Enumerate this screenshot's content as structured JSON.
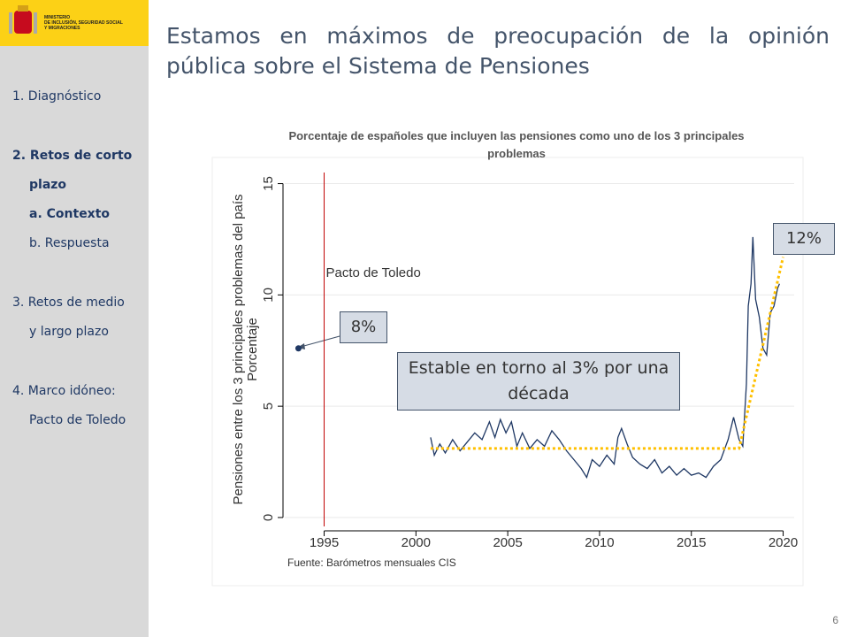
{
  "logo": {
    "lines": [
      "MINISTERIO",
      "DE INCLUSIÓN, SEGURIDAD SOCIAL",
      "Y MIGRACIONES"
    ]
  },
  "nav": [
    {
      "text": "1. Diagnóstico"
    },
    {
      "text": "2. Retos de corto",
      "cont": "plazo",
      "bold": true
    },
    {
      "text": "a. Contexto",
      "bold": true,
      "sub": true
    },
    {
      "text": "b. Respuesta",
      "sub": true
    },
    {
      "text": "3. Retos de medio",
      "cont": "y largo plazo"
    },
    {
      "text": "4. Marco idóneo:",
      "cont": "Pacto de Toledo"
    }
  ],
  "slide_title": "Estamos en máximos de preocupación de la opinión pública sobre el Sistema de Pensiones",
  "page_number": "6",
  "chart_data": {
    "type": "line",
    "title": "Porcentaje de españoles que incluyen las pensiones como uno de los 3 principales problemas",
    "ylabel": "Pensiones entre los 3 principales problemas del país",
    "ylabel2": "Porcentaje",
    "source": "Fuente: Barómetros mensuales CIS",
    "xlim": [
      1993,
      2020.6
    ],
    "xticks": [
      1995,
      2000,
      2005,
      2010,
      2015,
      2020
    ],
    "ylim": [
      -0.4,
      15.3
    ],
    "yticks": [
      0,
      5,
      10,
      15
    ],
    "vline": {
      "x": 1995,
      "label": "Pacto de Toledo",
      "color": "#c00000"
    },
    "series": [
      {
        "color": "#1f3864",
        "style": "solid",
        "x": [
          2000.8,
          2001.0,
          2001.3,
          2001.6,
          2002.0,
          2002.4,
          2002.8,
          2003.2,
          2003.6,
          2004.0,
          2004.3,
          2004.6,
          2004.9,
          2005.2,
          2005.5,
          2005.8,
          2006.2,
          2006.6,
          2007.0,
          2007.4,
          2007.8,
          2008.2,
          2008.6,
          2009.0,
          2009.3,
          2009.6,
          2010.0,
          2010.4,
          2010.8,
          2011.0,
          2011.2,
          2011.5,
          2011.8,
          2012.2,
          2012.6,
          2013.0,
          2013.4,
          2013.8,
          2014.2,
          2014.6,
          2015.0,
          2015.4,
          2015.8,
          2016.2,
          2016.6,
          2017.0,
          2017.3,
          2017.6,
          2017.8,
          2018.0,
          2018.1,
          2018.25,
          2018.35,
          2018.5,
          2018.7,
          2018.9,
          2019.1,
          2019.3,
          2019.5,
          2019.7,
          2019.8
        ],
        "values": [
          3.6,
          2.8,
          3.3,
          2.9,
          3.5,
          3.0,
          3.4,
          3.8,
          3.5,
          4.3,
          3.6,
          4.4,
          3.8,
          4.3,
          3.2,
          3.8,
          3.1,
          3.5,
          3.2,
          3.9,
          3.5,
          3.0,
          2.6,
          2.2,
          1.8,
          2.6,
          2.3,
          2.8,
          2.4,
          3.6,
          4.0,
          3.3,
          2.7,
          2.4,
          2.2,
          2.6,
          2.0,
          2.3,
          1.9,
          2.2,
          1.9,
          2.0,
          1.8,
          2.3,
          2.6,
          3.5,
          4.5,
          3.5,
          3.2,
          6.0,
          9.5,
          10.5,
          12.6,
          9.8,
          9.0,
          7.6,
          7.3,
          9.2,
          9.5,
          10.3,
          10.5
        ]
      },
      {
        "color": "#ffc000",
        "style": "dotted",
        "x": [
          2000.8,
          2017.6,
          2020
        ],
        "values": [
          3.1,
          3.1,
          11.7
        ]
      },
      {
        "color": "#1f3864",
        "style": "point",
        "x": [
          1993.6
        ],
        "values": [
          7.6
        ]
      }
    ],
    "annotations": [
      {
        "text": "8%"
      },
      {
        "text": "12%"
      },
      {
        "text": "Estable en torno al 3% por una década"
      }
    ]
  }
}
